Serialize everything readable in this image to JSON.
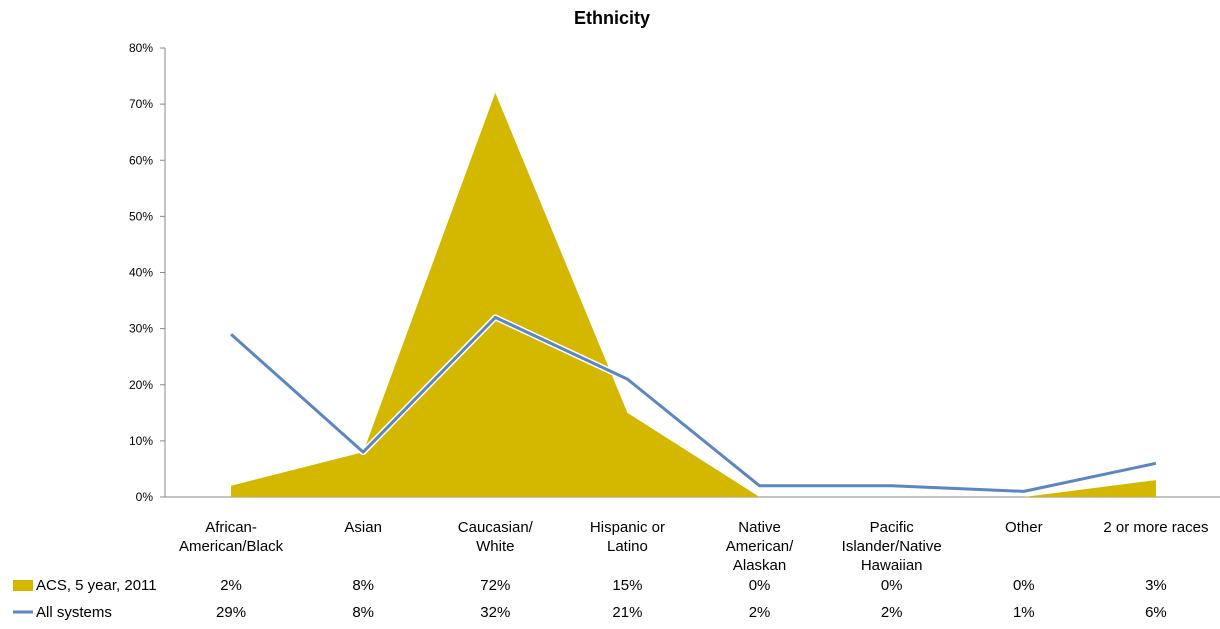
{
  "chart_data": {
    "type": "area",
    "title": "Ethnicity",
    "categories": [
      [
        "African-",
        "American/Black"
      ],
      [
        "Asian"
      ],
      [
        "Caucasian/",
        "White"
      ],
      [
        "Hispanic or",
        "Latino"
      ],
      [
        "Native",
        "American/",
        "Alaskan"
      ],
      [
        "Pacific",
        "Islander/Native",
        "Hawaiian"
      ],
      [
        "Other"
      ],
      [
        "2 or more races"
      ]
    ],
    "ylim": [
      0,
      80
    ],
    "yticks": [
      "0%",
      "10%",
      "20%",
      "30%",
      "40%",
      "50%",
      "60%",
      "70%",
      "80%"
    ],
    "series": [
      {
        "name": "ACS, 5 year, 2011",
        "kind": "area",
        "color": "#D4B800",
        "values": [
          2,
          8,
          72,
          15,
          0,
          0,
          0,
          3
        ],
        "labels": [
          "2%",
          "8%",
          "72%",
          "15%",
          "0%",
          "0%",
          "0%",
          "3%"
        ]
      },
      {
        "name": "All systems",
        "kind": "line",
        "color": "#5B86BF",
        "values": [
          29,
          8,
          32,
          21,
          2,
          2,
          1,
          6
        ],
        "labels": [
          "29%",
          "8%",
          "32%",
          "21%",
          "2%",
          "2%",
          "1%",
          "6%"
        ]
      }
    ],
    "legend": "bottom-left data table",
    "grid": false
  }
}
